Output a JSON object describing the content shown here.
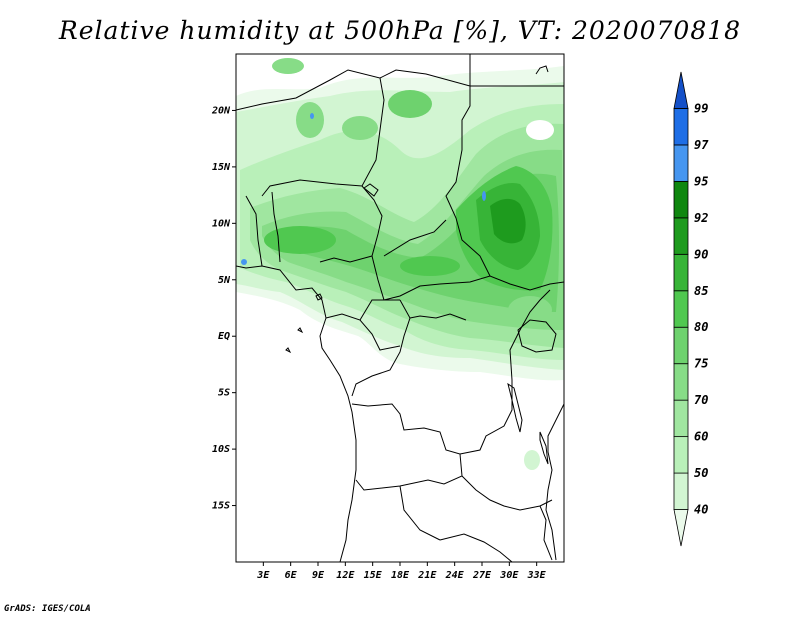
{
  "title": "Relative humidity at 500hPa [%], VT: 2020070818",
  "credit": "GrADS: IGES/COLA",
  "map": {
    "lon_range": [
      0,
      36
    ],
    "lat_range": [
      -20,
      25
    ],
    "lat_ticks": [
      {
        "lat": 20,
        "label": "20N"
      },
      {
        "lat": 15,
        "label": "15N"
      },
      {
        "lat": 10,
        "label": "10N"
      },
      {
        "lat": 5,
        "label": "5N"
      },
      {
        "lat": 0,
        "label": "EQ"
      },
      {
        "lat": -5,
        "label": "5S"
      },
      {
        "lat": -10,
        "label": "10S"
      },
      {
        "lat": -15,
        "label": "15S"
      }
    ],
    "lon_ticks": [
      {
        "lon": 3,
        "label": "3E"
      },
      {
        "lon": 6,
        "label": "6E"
      },
      {
        "lon": 9,
        "label": "9E"
      },
      {
        "lon": 12,
        "label": "12E"
      },
      {
        "lon": 15,
        "label": "15E"
      },
      {
        "lon": 18,
        "label": "18E"
      },
      {
        "lon": 21,
        "label": "21E"
      },
      {
        "lon": 24,
        "label": "24E"
      },
      {
        "lon": 27,
        "label": "27E"
      },
      {
        "lon": 30,
        "label": "30E"
      },
      {
        "lon": 33,
        "label": "33E"
      }
    ]
  },
  "colorbar": {
    "levels": [
      "40",
      "50",
      "60",
      "70",
      "75",
      "80",
      "85",
      "90",
      "92",
      "95",
      "97",
      "99"
    ],
    "colors": [
      "#ebfaeb",
      "#d2f5d2",
      "#b9f0b9",
      "#a0e6a0",
      "#87dc87",
      "#6ed26e",
      "#50c850",
      "#37b437",
      "#1e9b1e",
      "#0f870f",
      "#4696f0",
      "#1e6ee6",
      "#1450c8"
    ]
  }
}
